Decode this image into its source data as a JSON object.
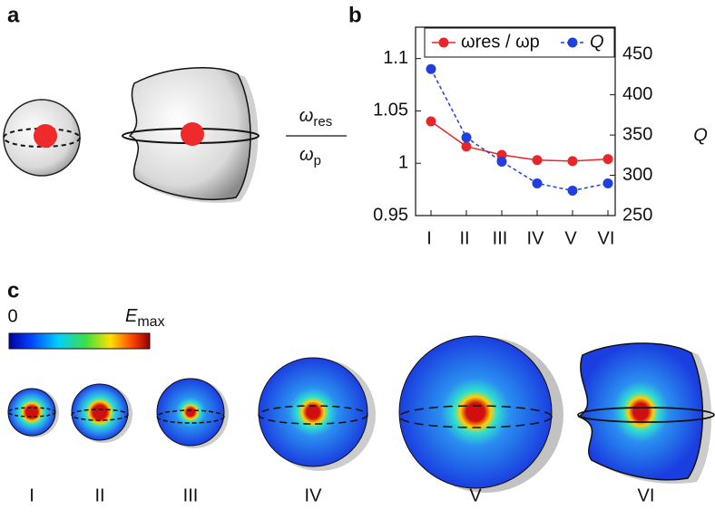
{
  "panel_labels": {
    "a": "a",
    "b": "b",
    "c": "c"
  },
  "chart_data": {
    "type": "line",
    "categories": [
      "I",
      "II",
      "III",
      "IV",
      "V",
      "VI"
    ],
    "series": [
      {
        "name": "ωres / ωp",
        "color": "#e8262a",
        "values": [
          1.04,
          1.016,
          1.008,
          1.003,
          1.002,
          1.004
        ]
      },
      {
        "name": "Q",
        "color": "#1f3fe0",
        "values": [
          432,
          347,
          317,
          290,
          281,
          290
        ],
        "axis": "y2",
        "dashed": true
      }
    ],
    "ylabel": {
      "numerator": "ω",
      "numerator_sub": "res",
      "denominator": "ω",
      "denominator_sub": "p"
    },
    "y2label": "Q",
    "ylim": [
      0.95,
      1.13
    ],
    "yticks": [
      0.95,
      1,
      1.05,
      1.1
    ],
    "y2lim": [
      250,
      484
    ],
    "y2ticks": [
      250,
      300,
      350,
      400,
      450
    ]
  },
  "colorbar": {
    "min_label": "0",
    "max_label": "E",
    "max_label_sub": "max"
  }
}
